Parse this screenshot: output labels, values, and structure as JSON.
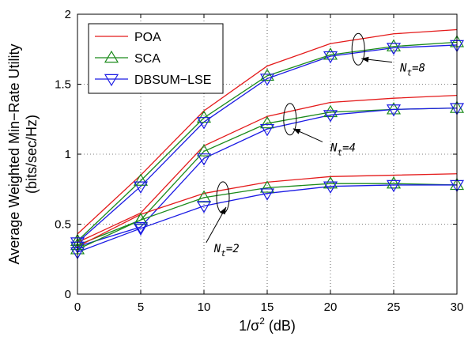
{
  "chart_data": {
    "type": "line",
    "xlabel": "1/σ",
    "xlabel_sup": "2",
    "xlabel_suffix": " (dB)",
    "ylabel_line1": "Average Weighted Min−Rate Utility",
    "ylabel_line2": "(bits/sec/Hz)",
    "xlim": [
      0,
      30
    ],
    "ylim": [
      0,
      2
    ],
    "xticks": [
      0,
      5,
      10,
      15,
      20,
      25,
      30
    ],
    "yticks": [
      0,
      0.5,
      1,
      1.5,
      2
    ],
    "xtick_labels": [
      "0",
      "5",
      "10",
      "15",
      "20",
      "25",
      "30"
    ],
    "ytick_labels": [
      "0",
      "0.5",
      "1",
      "1.5",
      "2"
    ],
    "grid": true,
    "legend_position": "top-left",
    "x": [
      0,
      5,
      10,
      15,
      20,
      25,
      30
    ],
    "series": [
      {
        "name": "POA",
        "group": "Nt=8",
        "color": "#e41a1a",
        "marker": "none",
        "values": [
          0.43,
          0.85,
          1.31,
          1.63,
          1.79,
          1.86,
          1.89
        ]
      },
      {
        "name": "SCA",
        "group": "Nt=8",
        "color": "#1a8a1a",
        "marker": "triangle-up",
        "values": [
          0.38,
          0.81,
          1.26,
          1.56,
          1.71,
          1.77,
          1.8
        ]
      },
      {
        "name": "DBSUM-LSE",
        "group": "Nt=8",
        "color": "#1a1ae4",
        "marker": "triangle-down",
        "values": [
          0.37,
          0.77,
          1.23,
          1.54,
          1.7,
          1.76,
          1.78
        ]
      },
      {
        "name": "POA",
        "group": "Nt=4",
        "color": "#e41a1a",
        "marker": "none",
        "values": [
          0.37,
          0.58,
          1.06,
          1.27,
          1.37,
          1.4,
          1.42
        ]
      },
      {
        "name": "SCA",
        "group": "Nt=4",
        "color": "#1a8a1a",
        "marker": "triangle-up",
        "values": [
          0.35,
          0.53,
          1.02,
          1.22,
          1.3,
          1.32,
          1.33
        ]
      },
      {
        "name": "DBSUM-LSE",
        "group": "Nt=4",
        "color": "#1a1ae4",
        "marker": "triangle-down",
        "values": [
          0.34,
          0.48,
          0.97,
          1.18,
          1.28,
          1.32,
          1.33
        ]
      },
      {
        "name": "POA",
        "group": "Nt=2",
        "color": "#e41a1a",
        "marker": "none",
        "values": [
          0.34,
          0.57,
          0.72,
          0.8,
          0.84,
          0.85,
          0.86
        ]
      },
      {
        "name": "SCA",
        "group": "Nt=2",
        "color": "#1a8a1a",
        "marker": "triangle-up",
        "values": [
          0.32,
          0.53,
          0.69,
          0.76,
          0.79,
          0.79,
          0.78
        ]
      },
      {
        "name": "DBSUM-LSE",
        "group": "Nt=2",
        "color": "#1a1ae4",
        "marker": "triangle-down",
        "values": [
          0.3,
          0.47,
          0.63,
          0.72,
          0.77,
          0.78,
          0.78
        ]
      }
    ],
    "legend": [
      {
        "label": "POA",
        "color": "#e41a1a",
        "marker": "none"
      },
      {
        "label": "SCA",
        "color": "#1a8a1a",
        "marker": "triangle-up"
      },
      {
        "label": "DBSUM−LSE",
        "color": "#1a1ae4",
        "marker": "triangle-down"
      }
    ],
    "annotations": [
      {
        "base": "N",
        "sub": "t",
        "suffix": "=8",
        "ellipse_at": [
          22.2,
          1.75
        ],
        "label_at": [
          25.5,
          1.59
        ]
      },
      {
        "base": "N",
        "sub": "t",
        "suffix": "=4",
        "ellipse_at": [
          16.8,
          1.25
        ],
        "label_at": [
          20.0,
          1.02
        ]
      },
      {
        "base": "N",
        "sub": "t",
        "suffix": "=2",
        "ellipse_at": [
          11.5,
          0.69
        ],
        "label_at": [
          10.8,
          0.3
        ]
      }
    ]
  }
}
